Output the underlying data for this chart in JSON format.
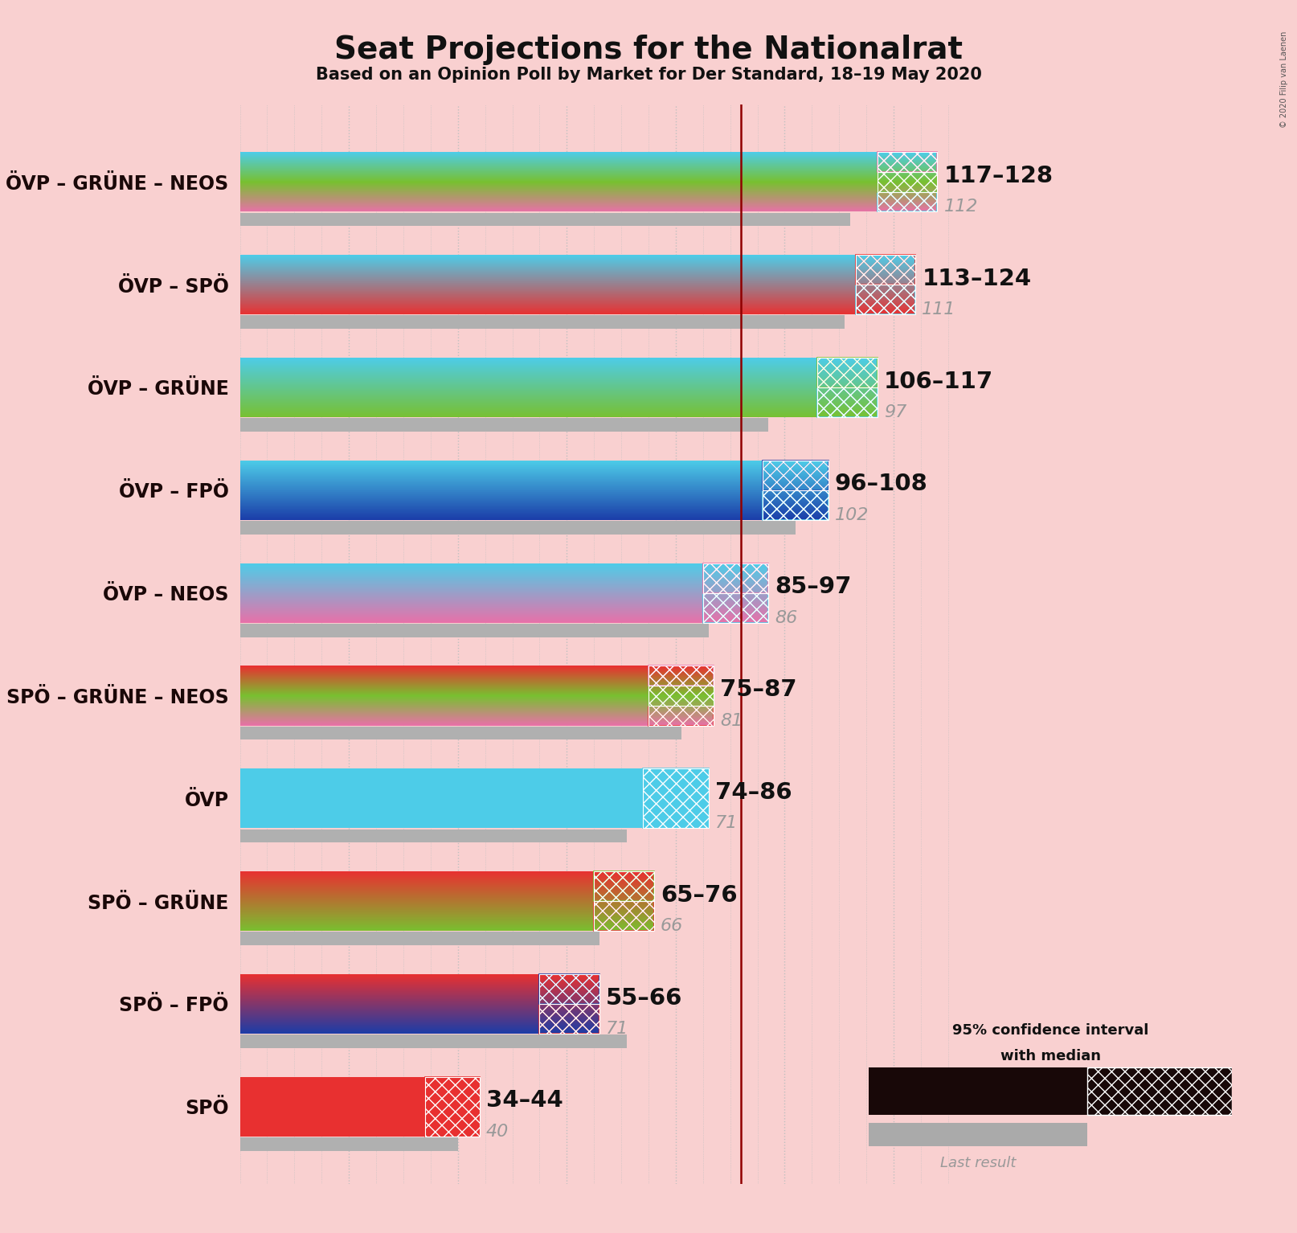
{
  "title": "Seat Projections for the Nationalrat",
  "subtitle": "Based on an Opinion Poll by Market for Der Standard, 18–19 May 2020",
  "copyright": "© 2020 Filip van Laenen",
  "background_color": "#f9d0d0",
  "coalitions": [
    {
      "name": "ÖVP – GRÜNE – NEOS",
      "range_label": "117–128",
      "last_result": 112,
      "ci_low": 117,
      "ci_high": 128,
      "colors": [
        "#4dcce8",
        "#78c030",
        "#e870a8"
      ],
      "underline": false
    },
    {
      "name": "ÖVP – SPÖ",
      "range_label": "113–124",
      "last_result": 111,
      "ci_low": 113,
      "ci_high": 124,
      "colors": [
        "#4dcce8",
        "#e83030"
      ],
      "underline": false
    },
    {
      "name": "ÖVP – GRÜNE",
      "range_label": "106–117",
      "last_result": 97,
      "ci_low": 106,
      "ci_high": 117,
      "colors": [
        "#4dcce8",
        "#78c030"
      ],
      "underline": true
    },
    {
      "name": "ÖVP – FPÖ",
      "range_label": "96–108",
      "last_result": 102,
      "ci_low": 96,
      "ci_high": 108,
      "colors": [
        "#4dcce8",
        "#1a3ca8"
      ],
      "underline": false
    },
    {
      "name": "ÖVP – NEOS",
      "range_label": "85–97",
      "last_result": 86,
      "ci_low": 85,
      "ci_high": 97,
      "colors": [
        "#4dcce8",
        "#e870a8"
      ],
      "underline": false
    },
    {
      "name": "SPÖ – GRÜNE – NEOS",
      "range_label": "75–87",
      "last_result": 81,
      "ci_low": 75,
      "ci_high": 87,
      "colors": [
        "#e83030",
        "#78c030",
        "#e870a8"
      ],
      "underline": false
    },
    {
      "name": "ÖVP",
      "range_label": "74–86",
      "last_result": 71,
      "ci_low": 74,
      "ci_high": 86,
      "colors": [
        "#4dcce8"
      ],
      "underline": false
    },
    {
      "name": "SPÖ – GRÜNE",
      "range_label": "65–76",
      "last_result": 66,
      "ci_low": 65,
      "ci_high": 76,
      "colors": [
        "#e83030",
        "#78c030"
      ],
      "underline": false
    },
    {
      "name": "SPÖ – FPÖ",
      "range_label": "55–66",
      "last_result": 71,
      "ci_low": 55,
      "ci_high": 66,
      "colors": [
        "#e83030",
        "#1a3ca8"
      ],
      "underline": false
    },
    {
      "name": "SPÖ",
      "range_label": "34–44",
      "last_result": 40,
      "ci_low": 34,
      "ci_high": 44,
      "colors": [
        "#e83030"
      ],
      "underline": false
    }
  ],
  "x_max": 130,
  "majority_line": 92,
  "gray_bar_color": "#b0b0b0",
  "majority_line_color": "#900000",
  "bar_height": 0.58,
  "last_result_bar_height": 0.13,
  "label_fontsize": 17,
  "range_fontsize": 21,
  "last_result_fontsize": 16,
  "title_fontsize": 28,
  "subtitle_fontsize": 15,
  "grad_steps": 60
}
